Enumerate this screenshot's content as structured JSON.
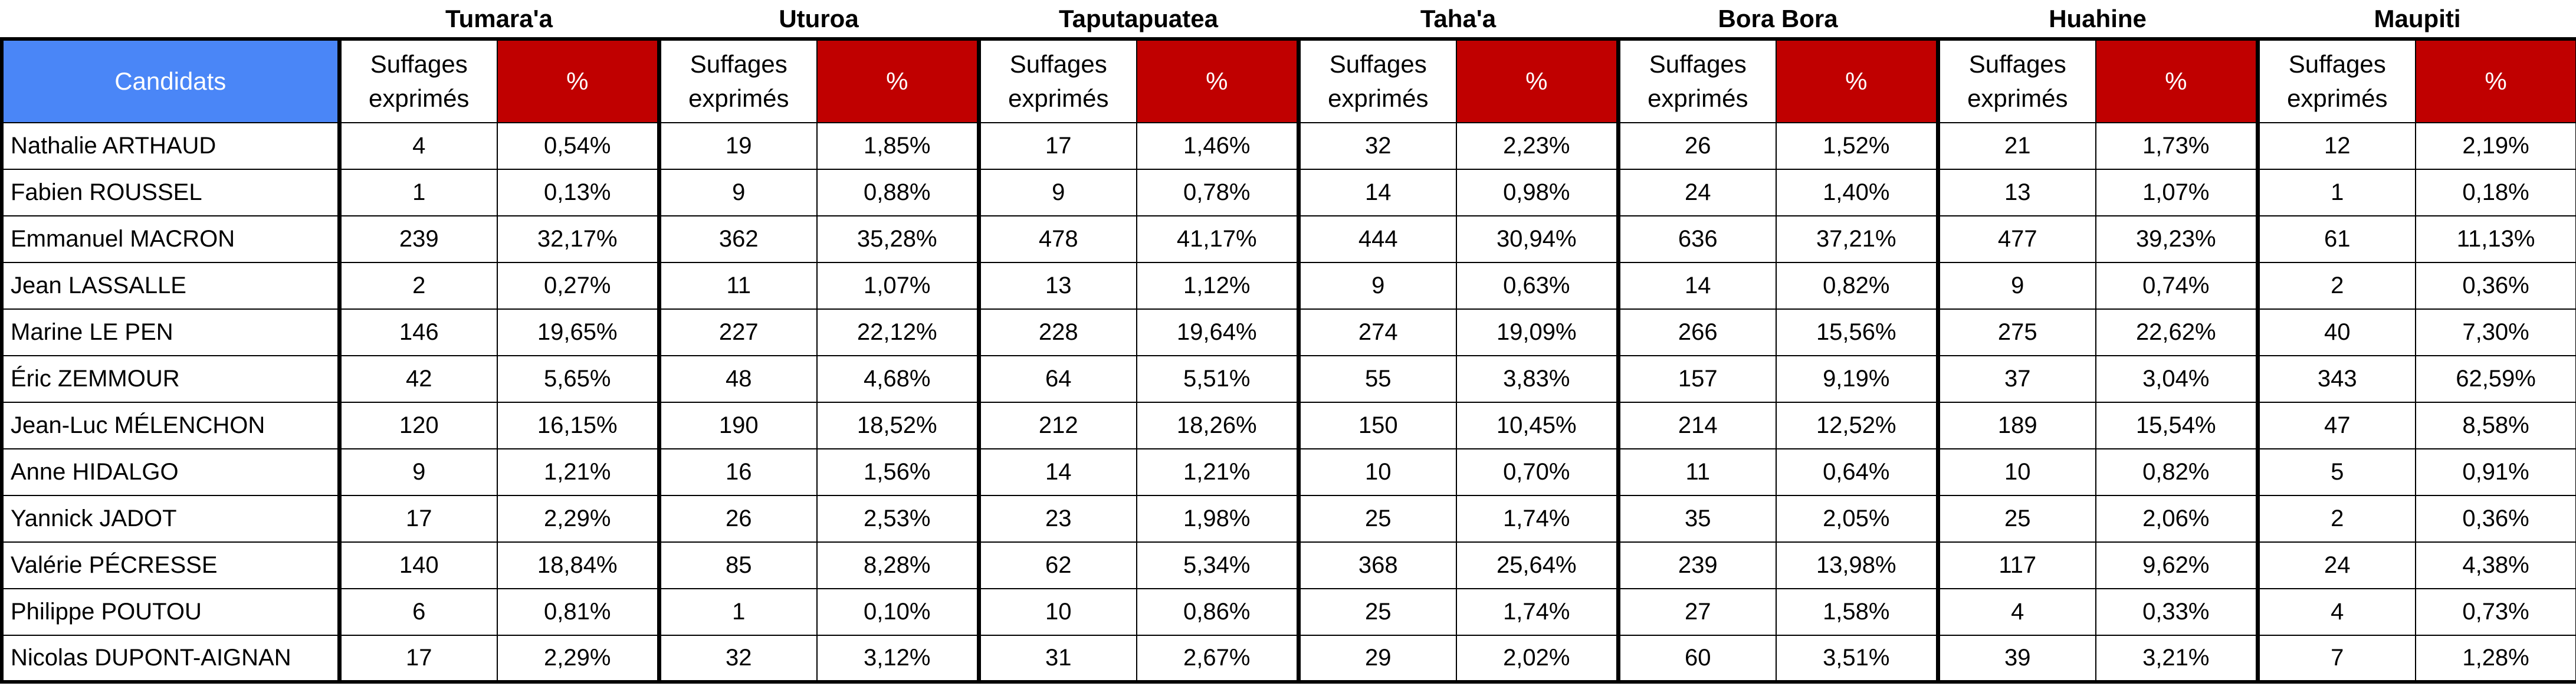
{
  "header": {
    "candidats_label": "Candidats",
    "suffrages_label_line1": "Suffages",
    "suffrages_label_line2": "exprimés",
    "percent_label": "%"
  },
  "communes": [
    "Tumara'a",
    "Uturoa",
    "Taputapuatea",
    "Taha'a",
    "Bora Bora",
    "Huahine",
    "Maupiti"
  ],
  "rows": [
    {
      "candidate": "Nathalie ARTHAUD",
      "cells": [
        [
          "4",
          "0,54%"
        ],
        [
          "19",
          "1,85%"
        ],
        [
          "17",
          "1,46%"
        ],
        [
          "32",
          "2,23%"
        ],
        [
          "26",
          "1,52%"
        ],
        [
          "21",
          "1,73%"
        ],
        [
          "12",
          "2,19%"
        ]
      ]
    },
    {
      "candidate": "Fabien ROUSSEL",
      "cells": [
        [
          "1",
          "0,13%"
        ],
        [
          "9",
          "0,88%"
        ],
        [
          "9",
          "0,78%"
        ],
        [
          "14",
          "0,98%"
        ],
        [
          "24",
          "1,40%"
        ],
        [
          "13",
          "1,07%"
        ],
        [
          "1",
          "0,18%"
        ]
      ]
    },
    {
      "candidate": "Emmanuel MACRON",
      "cells": [
        [
          "239",
          "32,17%"
        ],
        [
          "362",
          "35,28%"
        ],
        [
          "478",
          "41,17%"
        ],
        [
          "444",
          "30,94%"
        ],
        [
          "636",
          "37,21%"
        ],
        [
          "477",
          "39,23%"
        ],
        [
          "61",
          "11,13%"
        ]
      ]
    },
    {
      "candidate": "Jean LASSALLE",
      "cells": [
        [
          "2",
          "0,27%"
        ],
        [
          "11",
          "1,07%"
        ],
        [
          "13",
          "1,12%"
        ],
        [
          "9",
          "0,63%"
        ],
        [
          "14",
          "0,82%"
        ],
        [
          "9",
          "0,74%"
        ],
        [
          "2",
          "0,36%"
        ]
      ]
    },
    {
      "candidate": "Marine LE PEN",
      "cells": [
        [
          "146",
          "19,65%"
        ],
        [
          "227",
          "22,12%"
        ],
        [
          "228",
          "19,64%"
        ],
        [
          "274",
          "19,09%"
        ],
        [
          "266",
          "15,56%"
        ],
        [
          "275",
          "22,62%"
        ],
        [
          "40",
          "7,30%"
        ]
      ]
    },
    {
      "candidate": "Éric ZEMMOUR",
      "cells": [
        [
          "42",
          "5,65%"
        ],
        [
          "48",
          "4,68%"
        ],
        [
          "64",
          "5,51%"
        ],
        [
          "55",
          "3,83%"
        ],
        [
          "157",
          "9,19%"
        ],
        [
          "37",
          "3,04%"
        ],
        [
          "343",
          "62,59%"
        ]
      ]
    },
    {
      "candidate": "Jean-Luc MÉLENCHON",
      "cells": [
        [
          "120",
          "16,15%"
        ],
        [
          "190",
          "18,52%"
        ],
        [
          "212",
          "18,26%"
        ],
        [
          "150",
          "10,45%"
        ],
        [
          "214",
          "12,52%"
        ],
        [
          "189",
          "15,54%"
        ],
        [
          "47",
          "8,58%"
        ]
      ]
    },
    {
      "candidate": "Anne HIDALGO",
      "cells": [
        [
          "9",
          "1,21%"
        ],
        [
          "16",
          "1,56%"
        ],
        [
          "14",
          "1,21%"
        ],
        [
          "10",
          "0,70%"
        ],
        [
          "11",
          "0,64%"
        ],
        [
          "10",
          "0,82%"
        ],
        [
          "5",
          "0,91%"
        ]
      ]
    },
    {
      "candidate": "Yannick JADOT",
      "cells": [
        [
          "17",
          "2,29%"
        ],
        [
          "26",
          "2,53%"
        ],
        [
          "23",
          "1,98%"
        ],
        [
          "25",
          "1,74%"
        ],
        [
          "35",
          "2,05%"
        ],
        [
          "25",
          "2,06%"
        ],
        [
          "2",
          "0,36%"
        ]
      ]
    },
    {
      "candidate": "Valérie PÉCRESSE",
      "cells": [
        [
          "140",
          "18,84%"
        ],
        [
          "85",
          "8,28%"
        ],
        [
          "62",
          "5,34%"
        ],
        [
          "368",
          "25,64%"
        ],
        [
          "239",
          "13,98%"
        ],
        [
          "117",
          "9,62%"
        ],
        [
          "24",
          "4,38%"
        ]
      ]
    },
    {
      "candidate": "Philippe POUTOU",
      "cells": [
        [
          "6",
          "0,81%"
        ],
        [
          "1",
          "0,10%"
        ],
        [
          "10",
          "0,86%"
        ],
        [
          "25",
          "1,74%"
        ],
        [
          "27",
          "1,58%"
        ],
        [
          "4",
          "0,33%"
        ],
        [
          "4",
          "0,73%"
        ]
      ]
    },
    {
      "candidate": "Nicolas DUPONT-AIGNAN",
      "cells": [
        [
          "17",
          "2,29%"
        ],
        [
          "32",
          "3,12%"
        ],
        [
          "31",
          "2,67%"
        ],
        [
          "29",
          "2,02%"
        ],
        [
          "60",
          "3,51%"
        ],
        [
          "39",
          "3,21%"
        ],
        [
          "7",
          "1,28%"
        ]
      ]
    }
  ],
  "colors": {
    "candidats_header_bg": "#4a86f7",
    "percent_header_bg": "#c00000",
    "header_text_light": "#ffffff"
  }
}
